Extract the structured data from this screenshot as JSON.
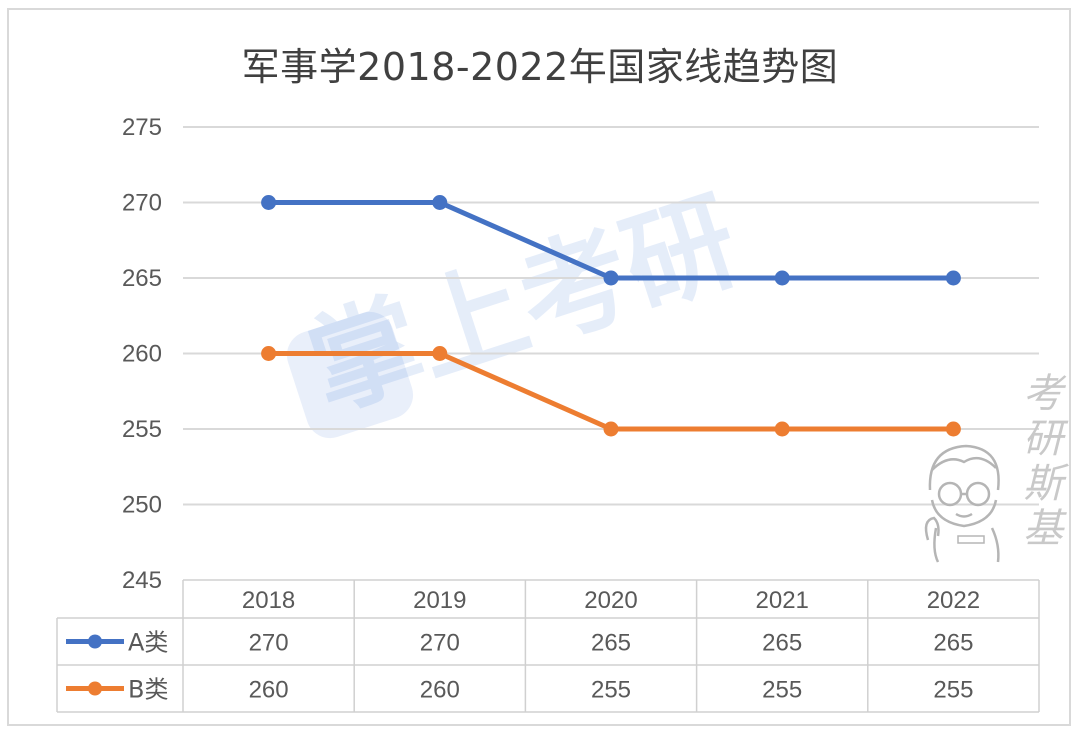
{
  "chart_data": {
    "type": "line",
    "title": "军事学2018-2022年国家线趋势图",
    "categories": [
      "2018",
      "2019",
      "2020",
      "2021",
      "2022"
    ],
    "series": [
      {
        "name": "A类",
        "values": [
          270,
          270,
          265,
          265,
          265
        ],
        "color": "#4472c4"
      },
      {
        "name": "B类",
        "values": [
          260,
          260,
          255,
          255,
          255
        ],
        "color": "#ed7d31"
      }
    ],
    "yticks": [
      "275",
      "270",
      "265",
      "260",
      "255",
      "250",
      "245"
    ],
    "ylim": [
      245,
      275
    ],
    "grid": true,
    "legend": "data table below chart"
  },
  "watermark": {
    "text": "掌上考研",
    "icon": "graduation-cap-book-icon"
  },
  "brand": {
    "text": "考研斯基",
    "icon": "mascot-boy-glasses-icon"
  }
}
